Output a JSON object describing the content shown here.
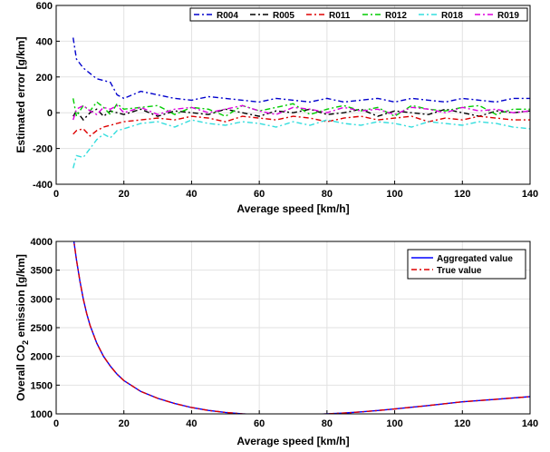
{
  "chart_data": [
    {
      "type": "line",
      "xlabel": "Average speed [km/h]",
      "ylabel": "Estimated error [g/km]",
      "xlim": [
        0,
        140
      ],
      "ylim": [
        -400,
        600
      ],
      "xticks": [
        0,
        20,
        40,
        60,
        80,
        100,
        120,
        140
      ],
      "yticks": [
        -400,
        -200,
        0,
        200,
        400,
        600
      ],
      "grid": true,
      "legend_position": "top",
      "x": [
        5,
        6,
        8,
        10,
        12,
        14,
        16,
        18,
        20,
        25,
        30,
        35,
        40,
        45,
        50,
        55,
        60,
        65,
        70,
        75,
        80,
        85,
        90,
        95,
        100,
        105,
        110,
        115,
        120,
        125,
        130,
        135,
        140
      ],
      "series": [
        {
          "name": "R004",
          "color": "#0000cc",
          "dash": "6,3,2,3",
          "values": [
            420,
            300,
            250,
            220,
            190,
            180,
            170,
            100,
            80,
            120,
            100,
            80,
            70,
            90,
            80,
            70,
            60,
            80,
            70,
            60,
            80,
            60,
            70,
            80,
            60,
            80,
            70,
            60,
            80,
            70,
            60,
            80,
            80
          ]
        },
        {
          "name": "R005",
          "color": "#000000",
          "dash": "6,3,2,3",
          "values": [
            -20,
            10,
            -40,
            0,
            20,
            -20,
            10,
            0,
            -10,
            20,
            -20,
            10,
            0,
            -10,
            20,
            0,
            -20,
            10,
            0,
            20,
            -10,
            0,
            20,
            -20,
            10,
            0,
            -10,
            20,
            0,
            -20,
            10,
            0,
            10
          ]
        },
        {
          "name": "R011",
          "color": "#dd0000",
          "dash": "6,3,2,3",
          "values": [
            -120,
            -100,
            -90,
            -130,
            -100,
            -80,
            -70,
            -60,
            -50,
            -40,
            -30,
            -40,
            -20,
            -30,
            -50,
            -20,
            -30,
            -40,
            -20,
            -30,
            -50,
            -30,
            -20,
            -40,
            -30,
            -20,
            -50,
            -30,
            -40,
            -20,
            -30,
            -40,
            -40
          ]
        },
        {
          "name": "R012",
          "color": "#00cc00",
          "dash": "6,3,2,3",
          "values": [
            80,
            -20,
            40,
            10,
            60,
            30,
            -10,
            50,
            20,
            30,
            40,
            -10,
            30,
            20,
            -20,
            40,
            10,
            30,
            50,
            -10,
            20,
            40,
            10,
            30,
            -20,
            40,
            20,
            10,
            30,
            40,
            -10,
            20,
            20
          ]
        },
        {
          "name": "R018",
          "color": "#33dddd",
          "dash": "6,3,2,3",
          "values": [
            -310,
            -240,
            -250,
            -200,
            -150,
            -120,
            -140,
            -100,
            -90,
            -60,
            -50,
            -80,
            -40,
            -60,
            -70,
            -50,
            -60,
            -80,
            -50,
            -70,
            -40,
            -60,
            -70,
            -50,
            -60,
            -80,
            -50,
            -60,
            -70,
            -50,
            -60,
            -80,
            -90
          ]
        },
        {
          "name": "R019",
          "color": "#dd00dd",
          "dash": "6,3,2,3",
          "values": [
            -40,
            20,
            40,
            10,
            -10,
            30,
            20,
            40,
            0,
            30,
            -10,
            20,
            30,
            0,
            20,
            40,
            10,
            -10,
            30,
            20,
            0,
            30,
            10,
            20,
            -10,
            30,
            20,
            0,
            30,
            10,
            20,
            0,
            10
          ]
        }
      ]
    },
    {
      "type": "line",
      "xlabel": "Average speed [km/h]",
      "ylabel_parts": [
        "Overall CO",
        "2",
        " emission [g/km]"
      ],
      "xlim": [
        0,
        140
      ],
      "ylim": [
        1000,
        4000
      ],
      "xticks": [
        0,
        20,
        40,
        60,
        80,
        100,
        120,
        140
      ],
      "yticks": [
        1000,
        1500,
        2000,
        2500,
        3000,
        3500,
        4000
      ],
      "grid": true,
      "legend_position": "top-right",
      "x": [
        5,
        6,
        7,
        8,
        9,
        10,
        12,
        14,
        16,
        18,
        20,
        25,
        30,
        35,
        40,
        45,
        50,
        55,
        60,
        65,
        70,
        75,
        80,
        85,
        90,
        95,
        100,
        110,
        120,
        130,
        140
      ],
      "series": [
        {
          "name": "Aggregated value",
          "color": "#0000ff",
          "dash": "",
          "values": [
            4100,
            3680,
            3310,
            3000,
            2750,
            2540,
            2230,
            2000,
            1830,
            1690,
            1580,
            1390,
            1270,
            1180,
            1110,
            1060,
            1025,
            1000,
            985,
            980,
            982,
            988,
            1000,
            1015,
            1035,
            1058,
            1085,
            1145,
            1210,
            1255,
            1300
          ]
        },
        {
          "name": "True value",
          "color": "#dd0000",
          "dash": "6,3,2,3",
          "values": [
            4100,
            3680,
            3310,
            3000,
            2750,
            2540,
            2230,
            2000,
            1830,
            1690,
            1580,
            1390,
            1270,
            1180,
            1110,
            1060,
            1025,
            1000,
            985,
            980,
            982,
            988,
            1000,
            1015,
            1035,
            1058,
            1085,
            1145,
            1210,
            1255,
            1300
          ]
        }
      ]
    }
  ]
}
